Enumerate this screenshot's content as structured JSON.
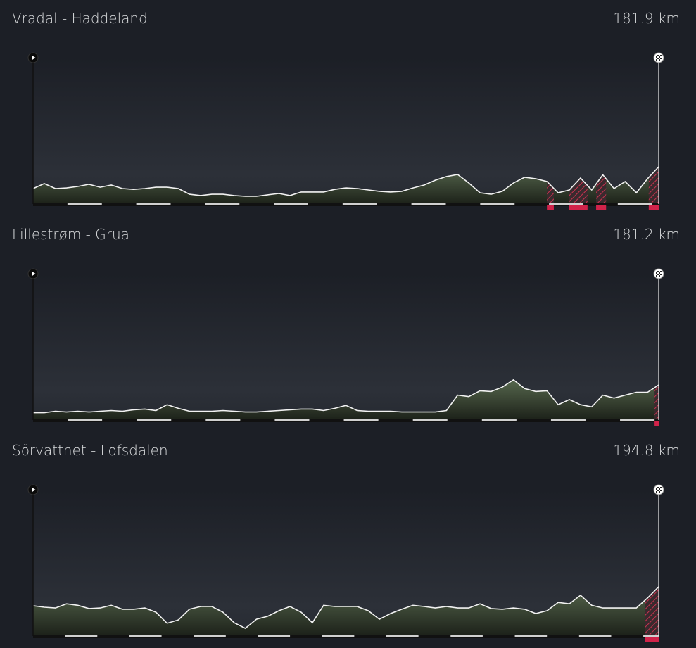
{
  "chart_data": [
    {
      "type": "area",
      "title": "Vradal - Haddeland",
      "distance": "181.9 km",
      "xlim": [
        0,
        181.9
      ],
      "ylim": [
        0,
        100
      ],
      "values": [
        10.6,
        14,
        10.6,
        11,
        12,
        13.5,
        11.5,
        13,
        10.6,
        10,
        10.6,
        11.5,
        11.5,
        10.6,
        6.7,
        5.8,
        6.7,
        6.7,
        5.8,
        5.3,
        5.3,
        6.3,
        7.2,
        5.8,
        8.2,
        8.2,
        8.2,
        10,
        11,
        10.6,
        9.6,
        8.7,
        8.2,
        8.7,
        11,
        13,
        16.3,
        18.8,
        20.2,
        14.4,
        7.7,
        6.7,
        8.7,
        14.4,
        18.3,
        17.3,
        15.4,
        7.7,
        9.6,
        17.8,
        9.6,
        20,
        10.6,
        15.4,
        7.7,
        17.3,
        25.5
      ],
      "climbs": [
        {
          "start": 149.4,
          "end": 151.4
        },
        {
          "start": 155.9,
          "end": 161.2
        },
        {
          "start": 163.7,
          "end": 166.6
        },
        {
          "start": 179.0,
          "end": 181.9
        }
      ]
    },
    {
      "type": "area",
      "title": "Lillestrøm -  Grua",
      "distance": "181.2 km",
      "xlim": [
        0,
        181.2
      ],
      "ylim": [
        0,
        100
      ],
      "values": [
        5,
        5,
        6,
        5.5,
        6,
        5.5,
        6,
        6.5,
        6,
        7,
        7.5,
        6.5,
        10.5,
        8,
        6,
        6,
        6,
        6.5,
        6,
        5.5,
        5.5,
        6,
        6.5,
        7,
        7.5,
        7.5,
        6.5,
        8,
        10,
        6.5,
        6,
        6,
        6,
        5.5,
        5.5,
        5.5,
        5.5,
        6.5,
        17,
        16,
        20,
        19.5,
        22.5,
        27.5,
        21.5,
        19.5,
        20,
        10.5,
        14,
        10.5,
        9,
        17,
        15,
        17,
        19,
        19,
        24
      ],
      "climbs": [
        {
          "start": 180.0,
          "end": 181.2
        }
      ]
    },
    {
      "type": "area",
      "title": "Sörvattnet - Lofsdalen",
      "distance": "194.8 km",
      "xlim": [
        0,
        194.8
      ],
      "ylim": [
        0,
        100
      ],
      "values": [
        20.7,
        19.7,
        19.2,
        22,
        21,
        18.8,
        19.2,
        21,
        18.3,
        18.3,
        19.2,
        16.3,
        8.7,
        11,
        18.3,
        20.2,
        20.2,
        16.3,
        9.1,
        5.3,
        11.5,
        13.5,
        17.3,
        20.2,
        16.3,
        9.1,
        21,
        20.2,
        20.2,
        20.2,
        17.3,
        11.5,
        15.4,
        18.3,
        21,
        20.2,
        19.2,
        20.2,
        19.2,
        19.2,
        22,
        18.8,
        18.3,
        19.2,
        18.3,
        15.4,
        17.3,
        23,
        22,
        27.9,
        21,
        19.2,
        19.2,
        19.2,
        19.2,
        26,
        33.7
      ],
      "climbs": [
        {
          "start": 190.6,
          "end": 194.8
        }
      ]
    }
  ]
}
